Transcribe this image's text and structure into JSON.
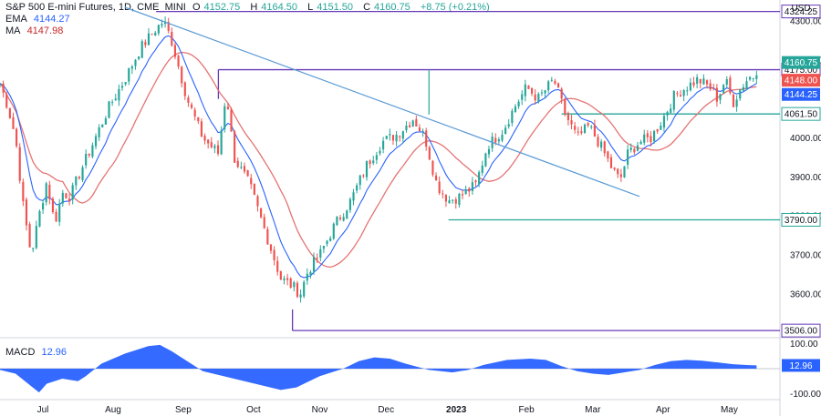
{
  "header": {
    "symbol_line": "S&P 500 E-mini Futures, 1D, CME_MINI",
    "ohlc": [
      {
        "key": "O",
        "value": "4152.75"
      },
      {
        "key": "H",
        "value": "4164.50"
      },
      {
        "key": "L",
        "value": "4151.50"
      },
      {
        "key": "C",
        "value": "4160.75"
      }
    ],
    "change": "+8.75 (+0.21%)",
    "ema": {
      "label": "EMA",
      "value": "4144.27"
    },
    "ma": {
      "label": "MA",
      "value": "4147.98"
    }
  },
  "macd_header": {
    "label": "MACD",
    "value": "12.96"
  },
  "currency": "USD",
  "colors": {
    "up": "#26a69a",
    "down": "#ef5350",
    "ema": "#2962ff",
    "ma": "#e57373",
    "level_purple": "#673ab7",
    "level_teal": "#26a69a",
    "trend": "#5b9bd5",
    "macd_fill": "#2962ff",
    "last_price": "#26a69a"
  },
  "chart_data": {
    "type": "candlestick",
    "title": "S&P 500 E-mini Futures, 1D, CME_MINI",
    "y_ticks": [
      "4300.00",
      "4200.00",
      "4000.00",
      "3900.00",
      "3800.00",
      "3700.00",
      "3600.00"
    ],
    "ylim": [
      3490,
      4335
    ],
    "x_ticks": [
      {
        "label": "Jul",
        "t": 0.055
      },
      {
        "label": "Aug",
        "t": 0.145
      },
      {
        "label": "Sep",
        "t": 0.235
      },
      {
        "label": "Oct",
        "t": 0.325
      },
      {
        "label": "Nov",
        "t": 0.41
      },
      {
        "label": "Dec",
        "t": 0.495
      },
      {
        "label": "2023",
        "t": 0.585,
        "bold": true
      },
      {
        "label": "Feb",
        "t": 0.675
      },
      {
        "label": "Mar",
        "t": 0.76
      },
      {
        "label": "Apr",
        "t": 0.85
      },
      {
        "label": "May",
        "t": 0.935
      }
    ],
    "price_anchors": [
      [
        0.0,
        4140
      ],
      [
        0.01,
        4080
      ],
      [
        0.02,
        4000
      ],
      [
        0.03,
        3820
      ],
      [
        0.04,
        3700
      ],
      [
        0.05,
        3800
      ],
      [
        0.06,
        3890
      ],
      [
        0.07,
        3780
      ],
      [
        0.08,
        3860
      ],
      [
        0.09,
        3850
      ],
      [
        0.1,
        3900
      ],
      [
        0.12,
        3990
      ],
      [
        0.14,
        4080
      ],
      [
        0.16,
        4150
      ],
      [
        0.18,
        4230
      ],
      [
        0.2,
        4280
      ],
      [
        0.21,
        4300
      ],
      [
        0.22,
        4250
      ],
      [
        0.24,
        4100
      ],
      [
        0.26,
        4000
      ],
      [
        0.28,
        3960
      ],
      [
        0.29,
        4120
      ],
      [
        0.3,
        3950
      ],
      [
        0.32,
        3880
      ],
      [
        0.34,
        3760
      ],
      [
        0.36,
        3640
      ],
      [
        0.375,
        3620
      ],
      [
        0.385,
        3600
      ],
      [
        0.395,
        3660
      ],
      [
        0.41,
        3700
      ],
      [
        0.43,
        3780
      ],
      [
        0.45,
        3840
      ],
      [
        0.47,
        3930
      ],
      [
        0.49,
        3990
      ],
      [
        0.51,
        4010
      ],
      [
        0.53,
        4050
      ],
      [
        0.545,
        4000
      ],
      [
        0.56,
        3880
      ],
      [
        0.575,
        3840
      ],
      [
        0.59,
        3850
      ],
      [
        0.61,
        3880
      ],
      [
        0.625,
        3980
      ],
      [
        0.645,
        4020
      ],
      [
        0.66,
        4080
      ],
      [
        0.675,
        4130
      ],
      [
        0.69,
        4100
      ],
      [
        0.71,
        4150
      ],
      [
        0.725,
        4060
      ],
      [
        0.74,
        4000
      ],
      [
        0.755,
        4030
      ],
      [
        0.77,
        3980
      ],
      [
        0.785,
        3920
      ],
      [
        0.795,
        3890
      ],
      [
        0.805,
        3960
      ],
      [
        0.82,
        3990
      ],
      [
        0.835,
        4000
      ],
      [
        0.85,
        4050
      ],
      [
        0.865,
        4110
      ],
      [
        0.88,
        4130
      ],
      [
        0.895,
        4150
      ],
      [
        0.91,
        4130
      ],
      [
        0.92,
        4100
      ],
      [
        0.93,
        4150
      ],
      [
        0.94,
        4090
      ],
      [
        0.95,
        4130
      ],
      [
        0.96,
        4155
      ],
      [
        0.97,
        4160.75
      ]
    ],
    "levels": [
      {
        "name": "level-4324",
        "price": 4324.25,
        "label": "4324.25",
        "color": "#673ab7",
        "t0": 0.2
      },
      {
        "name": "level-4175",
        "price": 4175.0,
        "label": "4175.00",
        "color": "#673ab7",
        "t0": 0.28
      },
      {
        "name": "level-4061",
        "price": 4061.5,
        "label": "4061.50",
        "color": "#26a69a",
        "t0": 0.72
      },
      {
        "name": "level-3790",
        "price": 3790.0,
        "label": "3790.00",
        "color": "#26a69a",
        "t0": 0.575
      },
      {
        "name": "level-3506",
        "price": 3506.0,
        "label": "3506.00",
        "color": "#673ab7",
        "t0": 0.375
      }
    ],
    "price_tags": [
      {
        "label": "4160.75",
        "price": 4160.75,
        "bg": "#26a69a",
        "fg": "#ffffff"
      },
      {
        "label": "4148.00",
        "price": 4148.0,
        "bg": "#ef5350",
        "fg": "#ffffff"
      },
      {
        "label": "4144.25",
        "price": 4144.25,
        "bg": "#2962ff",
        "fg": "#ffffff"
      }
    ],
    "trendline": {
      "t0": 0.16,
      "p0": 4335,
      "t1": 0.82,
      "p1": 3850
    },
    "macd": {
      "ticks": [
        "100.00",
        "-100.00"
      ],
      "ylim": [
        -120,
        120
      ],
      "last": "12.96",
      "anchors": [
        [
          0.0,
          -5
        ],
        [
          0.02,
          -20
        ],
        [
          0.04,
          -70
        ],
        [
          0.05,
          -95
        ],
        [
          0.06,
          -60
        ],
        [
          0.08,
          -40
        ],
        [
          0.1,
          -50
        ],
        [
          0.11,
          -30
        ],
        [
          0.13,
          20
        ],
        [
          0.16,
          60
        ],
        [
          0.19,
          90
        ],
        [
          0.205,
          95
        ],
        [
          0.22,
          70
        ],
        [
          0.24,
          30
        ],
        [
          0.26,
          -10
        ],
        [
          0.28,
          -25
        ],
        [
          0.3,
          -40
        ],
        [
          0.32,
          -55
        ],
        [
          0.34,
          -70
        ],
        [
          0.36,
          -85
        ],
        [
          0.38,
          -75
        ],
        [
          0.39,
          -60
        ],
        [
          0.41,
          -30
        ],
        [
          0.43,
          -10
        ],
        [
          0.44,
          0
        ],
        [
          0.46,
          30
        ],
        [
          0.48,
          45
        ],
        [
          0.5,
          40
        ],
        [
          0.52,
          20
        ],
        [
          0.55,
          -5
        ],
        [
          0.58,
          -15
        ],
        [
          0.6,
          -5
        ],
        [
          0.62,
          15
        ],
        [
          0.65,
          35
        ],
        [
          0.68,
          40
        ],
        [
          0.7,
          35
        ],
        [
          0.72,
          10
        ],
        [
          0.74,
          -10
        ],
        [
          0.76,
          -20
        ],
        [
          0.78,
          -25
        ],
        [
          0.8,
          -15
        ],
        [
          0.82,
          -5
        ],
        [
          0.84,
          15
        ],
        [
          0.86,
          30
        ],
        [
          0.88,
          35
        ],
        [
          0.9,
          32
        ],
        [
          0.92,
          25
        ],
        [
          0.94,
          18
        ],
        [
          0.96,
          14
        ],
        [
          0.97,
          13
        ]
      ]
    }
  }
}
